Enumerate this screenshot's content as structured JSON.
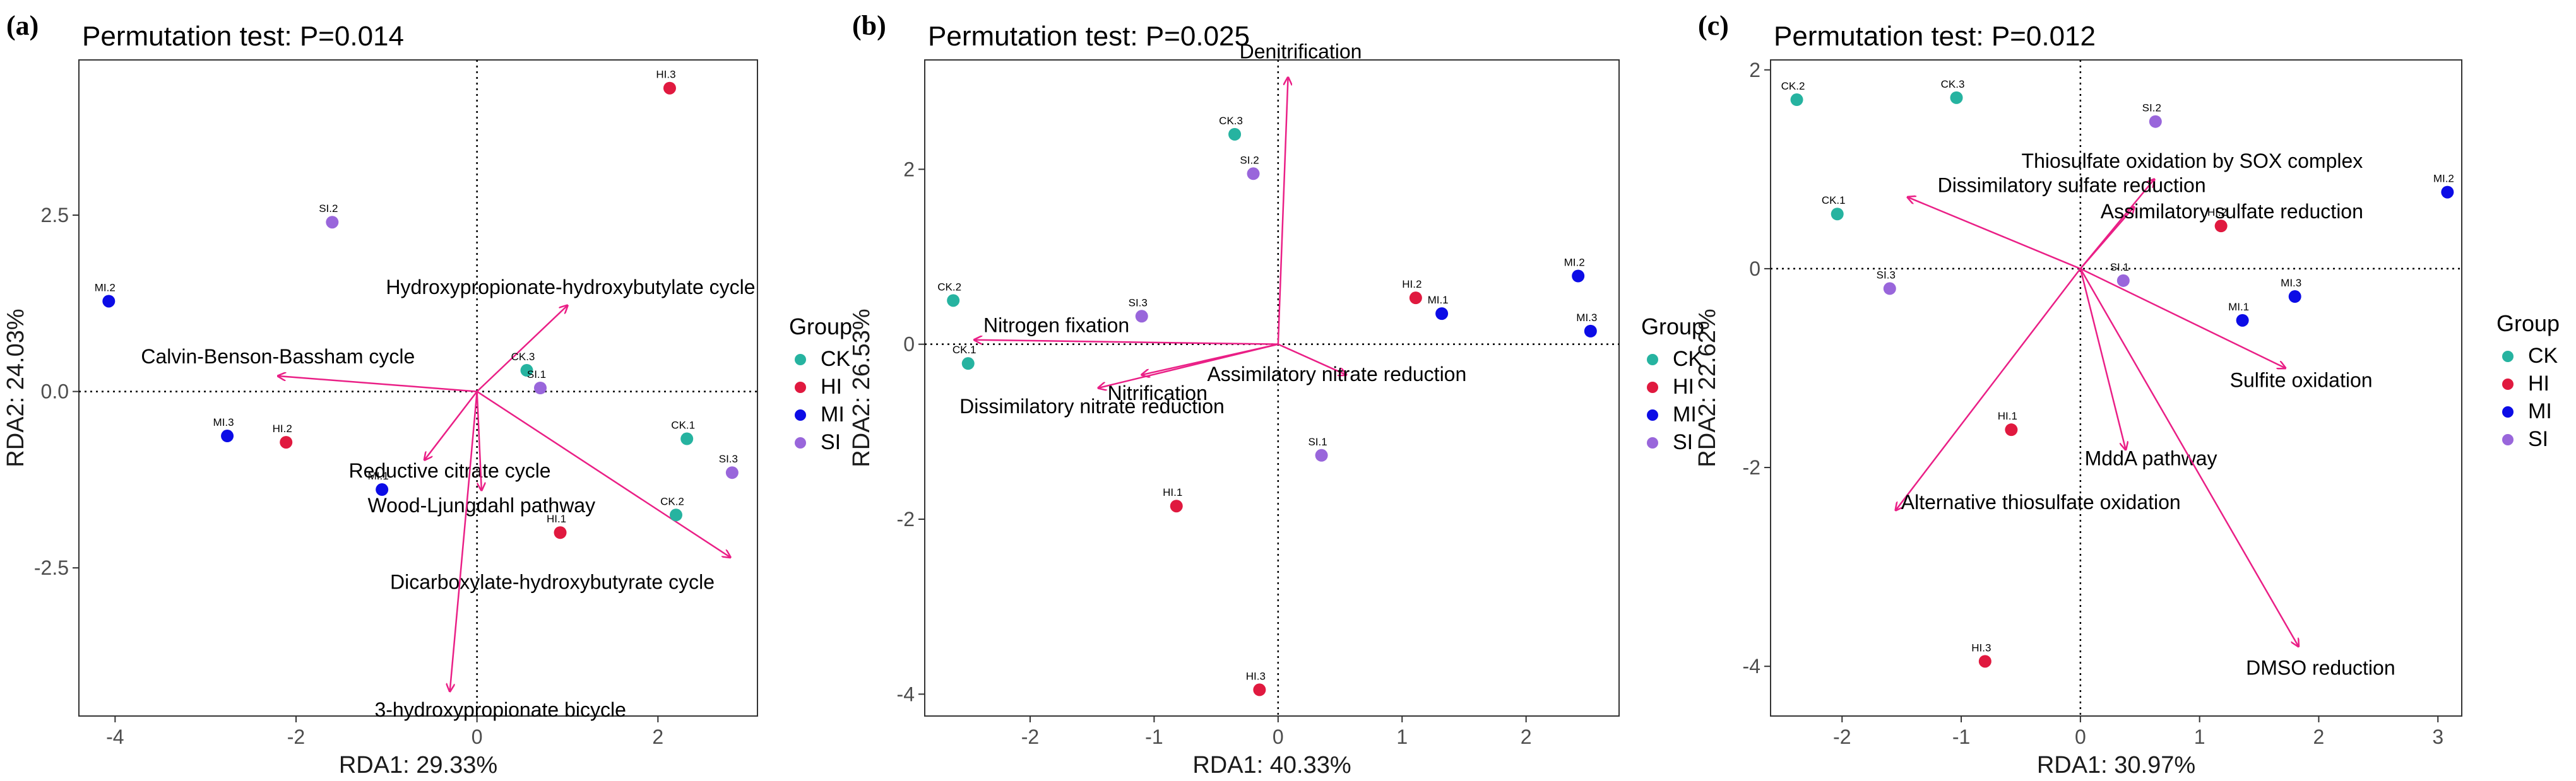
{
  "figure": {
    "colors": {
      "CK": "#26b3a0",
      "HI": "#e0193f",
      "MI": "#0c0ce6",
      "SI": "#9966db",
      "arrow": "#ea1f86"
    },
    "legend": {
      "title": "Group",
      "items": [
        "CK",
        "HI",
        "MI",
        "SI"
      ]
    }
  },
  "chart_data": [
    {
      "type": "scatter",
      "panel_label": "(a)",
      "title": "Permutation test: P=0.014",
      "xlabel": "RDA1: 29.33%",
      "ylabel": "RDA2: 24.03%",
      "xlim": [
        -4.4,
        3.1
      ],
      "ylim": [
        -4.6,
        4.7
      ],
      "xticks": [
        -4,
        -2,
        0,
        2
      ],
      "xtick_labels": [
        "-4",
        "-2",
        "0",
        "2"
      ],
      "yticks": [
        -2.5,
        0,
        2.5
      ],
      "ytick_labels": [
        "-2.5",
        "0.0",
        "2.5"
      ],
      "points": [
        {
          "label": "CK.1",
          "group": "CK",
          "x": 2.32,
          "y": -0.67
        },
        {
          "label": "CK.2",
          "group": "CK",
          "x": 2.2,
          "y": -1.75
        },
        {
          "label": "CK.3",
          "group": "CK",
          "x": 0.55,
          "y": 0.3
        },
        {
          "label": "HI.1",
          "group": "HI",
          "x": 0.92,
          "y": -2.0
        },
        {
          "label": "HI.2",
          "group": "HI",
          "x": -2.11,
          "y": -0.72
        },
        {
          "label": "HI.3",
          "group": "HI",
          "x": 2.13,
          "y": 4.3
        },
        {
          "label": "MI.1",
          "group": "MI",
          "x": -1.05,
          "y": -1.39
        },
        {
          "label": "MI.2",
          "group": "MI",
          "x": -4.07,
          "y": 1.28
        },
        {
          "label": "MI.3",
          "group": "MI",
          "x": -2.76,
          "y": -0.63
        },
        {
          "label": "SI.1",
          "group": "SI",
          "x": 0.7,
          "y": 0.05
        },
        {
          "label": "SI.2",
          "group": "SI",
          "x": -1.6,
          "y": 2.4
        },
        {
          "label": "SI.3",
          "group": "SI",
          "x": 2.82,
          "y": -1.15
        }
      ],
      "vectors": [
        {
          "name": "Hydroxypropionate-hydroxybutylate cycle",
          "x": 1.0,
          "y": 1.22
        },
        {
          "name": "Calvin-Benson-Bassham cycle",
          "x": -2.2,
          "y": 0.22
        },
        {
          "name": "Reductive citrate cycle",
          "x": -0.58,
          "y": -0.97
        },
        {
          "name": "Wood-Ljungdahl pathway",
          "x": 0.05,
          "y": -1.4
        },
        {
          "name": "Dicarboxylate-hydroxybutyrate cycle",
          "x": 2.8,
          "y": -2.35
        },
        {
          "name": "3-hydroxypropionate bicycle",
          "x": -0.3,
          "y": -4.25
        }
      ]
    },
    {
      "type": "scatter",
      "panel_label": "(b)",
      "title": "Permutation test: P=0.025",
      "xlabel": "RDA1: 40.33%",
      "ylabel": "RDA2: 26.53%",
      "xlim": [
        -2.85,
        2.75
      ],
      "ylim": [
        -4.25,
        3.25
      ],
      "xticks": [
        -2,
        -1,
        0,
        1,
        2
      ],
      "xtick_labels": [
        "-2",
        "-1",
        "0",
        "1",
        "2"
      ],
      "yticks": [
        -4,
        -2,
        0,
        2
      ],
      "ytick_labels": [
        "-4",
        "-2",
        "0",
        "2"
      ],
      "points": [
        {
          "label": "CK.1",
          "group": "CK",
          "x": -2.5,
          "y": -0.22
        },
        {
          "label": "CK.2",
          "group": "CK",
          "x": -2.62,
          "y": 0.5
        },
        {
          "label": "CK.3",
          "group": "CK",
          "x": -0.35,
          "y": 2.4
        },
        {
          "label": "HI.1",
          "group": "HI",
          "x": -0.82,
          "y": -1.85
        },
        {
          "label": "HI.2",
          "group": "HI",
          "x": 1.11,
          "y": 0.53
        },
        {
          "label": "HI.3",
          "group": "HI",
          "x": -0.15,
          "y": -3.95
        },
        {
          "label": "MI.1",
          "group": "MI",
          "x": 1.32,
          "y": 0.35
        },
        {
          "label": "MI.2",
          "group": "MI",
          "x": 2.42,
          "y": 0.78
        },
        {
          "label": "MI.3",
          "group": "MI",
          "x": 2.52,
          "y": 0.15
        },
        {
          "label": "SI.1",
          "group": "SI",
          "x": 0.35,
          "y": -1.27
        },
        {
          "label": "SI.2",
          "group": "SI",
          "x": -0.2,
          "y": 1.95
        },
        {
          "label": "SI.3",
          "group": "SI",
          "x": -1.1,
          "y": 0.32
        }
      ],
      "vectors": [
        {
          "name": "Denitrification",
          "x": 0.08,
          "y": 3.05
        },
        {
          "name": "Nitrogen fixation",
          "x": -2.45,
          "y": 0.05
        },
        {
          "name": "Nitrification",
          "x": -1.1,
          "y": -0.35
        },
        {
          "name": "Assimilatory nitrate reduction",
          "x": 0.55,
          "y": -0.35
        },
        {
          "name": "Dissimilatory nitrate reduction",
          "x": -1.45,
          "y": -0.5
        }
      ]
    },
    {
      "type": "scatter",
      "panel_label": "(c)",
      "title": "Permutation test: P=0.012",
      "xlabel": "RDA1: 30.97%",
      "ylabel": "RDA2: 22.62%",
      "xlim": [
        -2.6,
        3.2
      ],
      "ylim": [
        -4.5,
        2.1
      ],
      "xticks": [
        -2,
        -1,
        0,
        1,
        2,
        3
      ],
      "xtick_labels": [
        "-2",
        "-1",
        "0",
        "1",
        "2",
        "3"
      ],
      "yticks": [
        -4,
        -2,
        0,
        2
      ],
      "ytick_labels": [
        "-4",
        "-2",
        "0",
        "2"
      ],
      "points": [
        {
          "label": "CK.1",
          "group": "CK",
          "x": -2.04,
          "y": 0.55
        },
        {
          "label": "CK.2",
          "group": "CK",
          "x": -2.38,
          "y": 1.7
        },
        {
          "label": "CK.3",
          "group": "CK",
          "x": -1.04,
          "y": 1.72
        },
        {
          "label": "HI.1",
          "group": "HI",
          "x": -0.58,
          "y": -1.62
        },
        {
          "label": "HI.2",
          "group": "HI",
          "x": 1.18,
          "y": 0.43
        },
        {
          "label": "HI.3",
          "group": "HI",
          "x": -0.8,
          "y": -3.95
        },
        {
          "label": "MI.1",
          "group": "MI",
          "x": 1.36,
          "y": -0.52
        },
        {
          "label": "MI.2",
          "group": "MI",
          "x": 3.08,
          "y": 0.77
        },
        {
          "label": "MI.3",
          "group": "MI",
          "x": 1.8,
          "y": -0.28
        },
        {
          "label": "SI.1",
          "group": "SI",
          "x": 0.36,
          "y": -0.12
        },
        {
          "label": "SI.2",
          "group": "SI",
          "x": 0.63,
          "y": 1.48
        },
        {
          "label": "SI.3",
          "group": "SI",
          "x": -1.6,
          "y": -0.2
        }
      ],
      "vectors": [
        {
          "name": "Thiosulfate oxidation by SOX complex",
          "x": 0.62,
          "y": 0.9
        },
        {
          "name": "Dissimilatory sulfate reduction",
          "x": -1.45,
          "y": 0.72
        },
        {
          "name": "Assimilatory sulfate reduction",
          "x": 0.45,
          "y": 0.62
        },
        {
          "name": "Sulfite oxidation",
          "x": 1.72,
          "y": -1.0
        },
        {
          "name": "MddA pathway",
          "x": 0.38,
          "y": -1.82
        },
        {
          "name": "Alternative thiosulfate oxidation",
          "x": -1.55,
          "y": -2.43
        },
        {
          "name": "DMSO reduction",
          "x": 1.83,
          "y": -3.8
        }
      ]
    }
  ]
}
